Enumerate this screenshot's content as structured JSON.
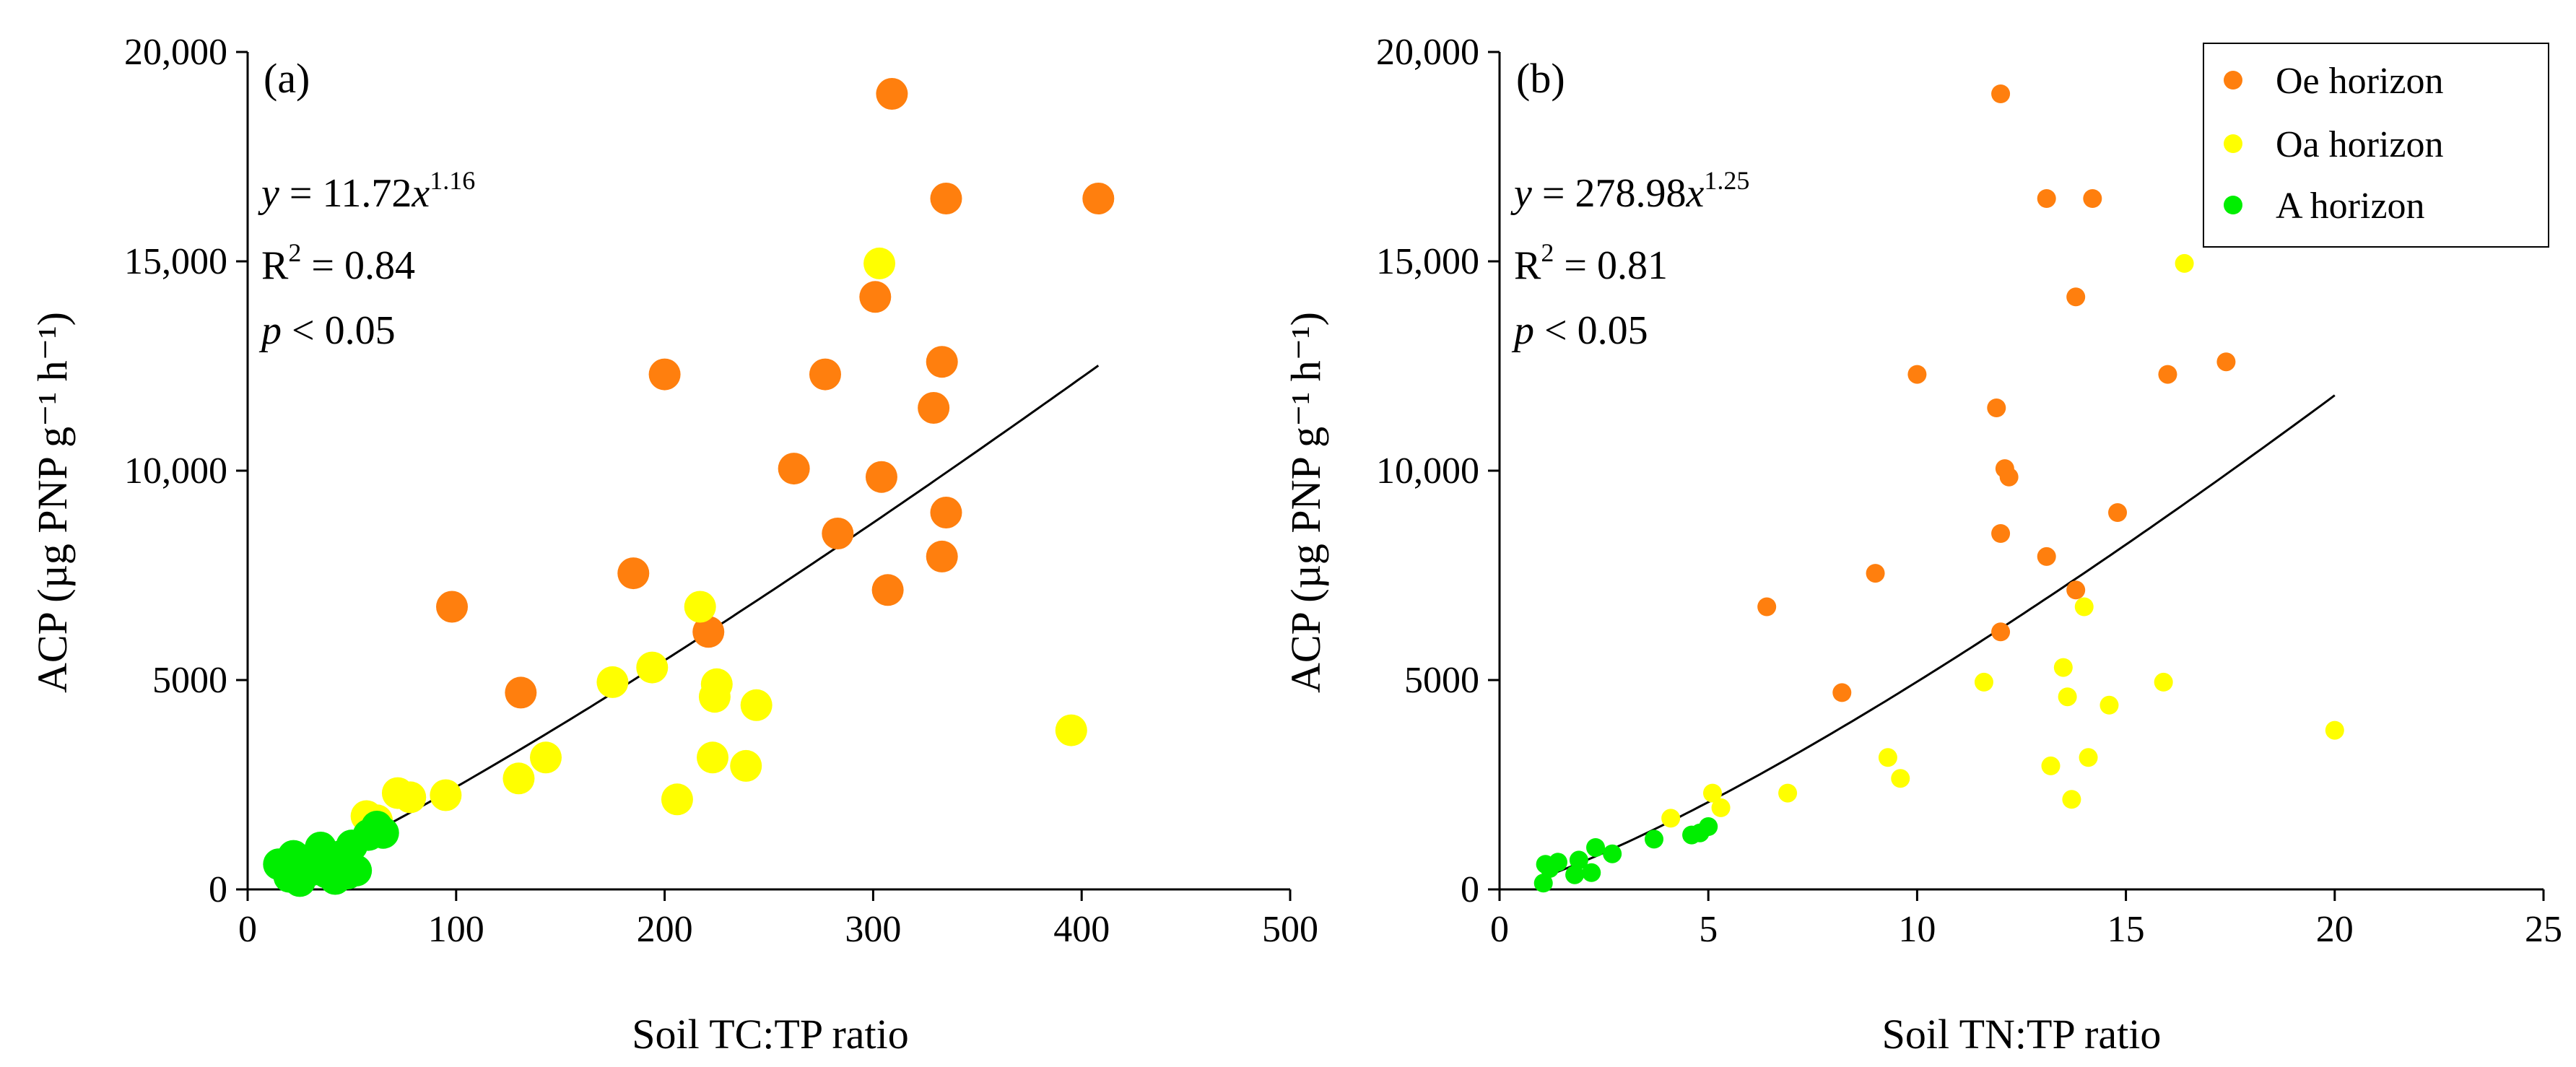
{
  "colors": {
    "Oe horizon": "#ff7f0e",
    "Oa horizon": "#ffff00",
    "A horizon": "#00ee00",
    "fit_line": "#000000"
  },
  "legend": {
    "items": [
      "Oe horizon",
      "Oa horizon",
      "A horizon"
    ]
  },
  "chart_data": [
    {
      "type": "scatter",
      "panel_label": "(a)",
      "xlabel": "Soil TC:TP ratio",
      "ylabel": "ACP (µg PNP g⁻¹ h⁻¹)",
      "xlim": [
        0,
        500
      ],
      "ylim": [
        0,
        20000
      ],
      "xticks": [
        0,
        100,
        200,
        300,
        400,
        500
      ],
      "xtick_labels": [
        "0",
        "100",
        "200",
        "300",
        "400",
        "500"
      ],
      "yticks": [
        0,
        5000,
        10000,
        15000,
        20000
      ],
      "ytick_labels": [
        "0",
        "5000",
        "10,000",
        "15,000",
        "20,000"
      ],
      "equation": {
        "y_var": "y",
        "eq_mid": " = 11.72",
        "x_var": "x",
        "exponent": "1.16",
        "r_label": "R",
        "r_sup": "2",
        "r_value": " = 0.84",
        "p_var": "p",
        "p_value": " < 0.05"
      },
      "fit": {
        "a": 11.72,
        "b": 1.16,
        "x_range": [
          18,
          408
        ]
      },
      "series": [
        {
          "name": "Oe horizon",
          "points": [
            [
              309,
              19000
            ],
            [
              335,
              16500
            ],
            [
              408,
              16500
            ],
            [
              301,
              14150
            ],
            [
              333,
              12600
            ],
            [
              200,
              12300
            ],
            [
              277,
              12300
            ],
            [
              329,
              11500
            ],
            [
              262,
              10050
            ],
            [
              304,
              9850
            ],
            [
              335,
              9000
            ],
            [
              283,
              8500
            ],
            [
              185,
              7550
            ],
            [
              333,
              7950
            ],
            [
              307,
              7150
            ],
            [
              98,
              6750
            ],
            [
              221,
              6150
            ],
            [
              131,
              4700
            ]
          ]
        },
        {
          "name": "Oa horizon",
          "points": [
            [
              303,
              14950
            ],
            [
              217,
              6750
            ],
            [
              194,
              5300
            ],
            [
              175,
              4950
            ],
            [
              225,
              4900
            ],
            [
              224,
              4600
            ],
            [
              244,
              4400
            ],
            [
              395,
              3800
            ],
            [
              143,
              3150
            ],
            [
              223,
              3150
            ],
            [
              239,
              2950
            ],
            [
              130,
              2650
            ],
            [
              206,
              2150
            ],
            [
              72,
              2300
            ],
            [
              78,
              2200
            ],
            [
              95,
              2250
            ],
            [
              57,
              1750
            ],
            [
              62,
              1650
            ]
          ]
        },
        {
          "name": "A horizon",
          "points": [
            [
              62,
              1500
            ],
            [
              58,
              1300
            ],
            [
              65,
              1350
            ],
            [
              50,
              1050
            ],
            [
              35,
              1000
            ],
            [
              22,
              800
            ],
            [
              45,
              800
            ],
            [
              15,
              600
            ],
            [
              28,
              650
            ],
            [
              30,
              450
            ],
            [
              38,
              400
            ],
            [
              52,
              450
            ],
            [
              20,
              300
            ],
            [
              42,
              250
            ],
            [
              48,
              380
            ],
            [
              25,
              200
            ]
          ]
        }
      ]
    },
    {
      "type": "scatter",
      "panel_label": "(b)",
      "xlabel": "Soil TN:TP ratio",
      "ylabel": "ACP (µg PNP g⁻¹ h⁻¹)",
      "xlim": [
        0,
        25
      ],
      "ylim": [
        0,
        20000
      ],
      "xticks": [
        0,
        5,
        10,
        15,
        20,
        25
      ],
      "xtick_labels": [
        "0",
        "5",
        "10",
        "15",
        "20",
        "25"
      ],
      "yticks": [
        0,
        5000,
        10000,
        15000,
        20000
      ],
      "ytick_labels": [
        "0",
        "5000",
        "10,000",
        "15,000",
        "20,000"
      ],
      "equation": {
        "y_var": "y",
        "eq_mid": " = 278.98",
        "x_var": "x",
        "exponent": "1.25",
        "r_label": "R",
        "r_sup": "2",
        "r_value": " = 0.81",
        "p_var": "p",
        "p_value": " < 0.05"
      },
      "fit": {
        "a": 278.98,
        "b": 1.25,
        "x_range": [
          1.0,
          20.0
        ]
      },
      "series": [
        {
          "name": "Oe horizon",
          "points": [
            [
              12.0,
              19000
            ],
            [
              13.1,
              16500
            ],
            [
              14.2,
              16500
            ],
            [
              13.8,
              14150
            ],
            [
              17.4,
              12600
            ],
            [
              10.0,
              12300
            ],
            [
              16.0,
              12300
            ],
            [
              11.9,
              11500
            ],
            [
              12.1,
              10050
            ],
            [
              12.2,
              9850
            ],
            [
              14.8,
              9000
            ],
            [
              12.0,
              8500
            ],
            [
              9.0,
              7550
            ],
            [
              13.1,
              7950
            ],
            [
              13.8,
              7150
            ],
            [
              6.4,
              6750
            ],
            [
              12.0,
              6150
            ],
            [
              8.2,
              4700
            ]
          ]
        },
        {
          "name": "Oa horizon",
          "points": [
            [
              16.4,
              14950
            ],
            [
              14.0,
              6750
            ],
            [
              13.5,
              5300
            ],
            [
              11.6,
              4950
            ],
            [
              15.9,
              4950
            ],
            [
              13.6,
              4600
            ],
            [
              14.6,
              4400
            ],
            [
              20.0,
              3800
            ],
            [
              9.3,
              3150
            ],
            [
              14.1,
              3150
            ],
            [
              13.2,
              2950
            ],
            [
              9.6,
              2650
            ],
            [
              13.7,
              2150
            ],
            [
              5.1,
              2300
            ],
            [
              6.9,
              2300
            ],
            [
              5.3,
              1950
            ],
            [
              4.1,
              1700
            ]
          ]
        },
        {
          "name": "A horizon",
          "points": [
            [
              5.0,
              1500
            ],
            [
              4.6,
              1300
            ],
            [
              4.8,
              1350
            ],
            [
              3.7,
              1200
            ],
            [
              2.7,
              850
            ],
            [
              2.3,
              1000
            ],
            [
              1.9,
              700
            ],
            [
              1.4,
              650
            ],
            [
              1.1,
              600
            ],
            [
              2.2,
              400
            ],
            [
              1.8,
              350
            ],
            [
              1.2,
              500
            ],
            [
              1.05,
              150
            ]
          ]
        }
      ]
    }
  ]
}
